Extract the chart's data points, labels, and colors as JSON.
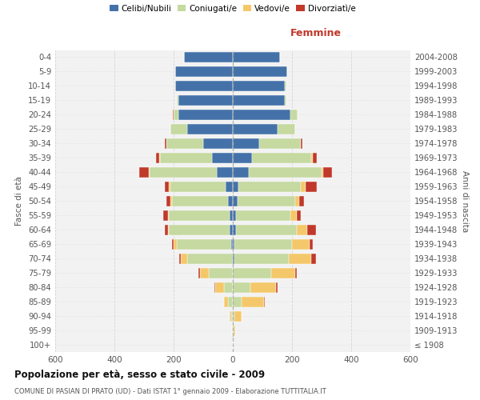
{
  "age_groups": [
    "100+",
    "95-99",
    "90-94",
    "85-89",
    "80-84",
    "75-79",
    "70-74",
    "65-69",
    "60-64",
    "55-59",
    "50-54",
    "45-49",
    "40-44",
    "35-39",
    "30-34",
    "25-29",
    "20-24",
    "15-19",
    "10-14",
    "5-9",
    "0-4"
  ],
  "birth_years": [
    "≤ 1908",
    "1909-1913",
    "1914-1918",
    "1919-1923",
    "1924-1928",
    "1929-1933",
    "1934-1938",
    "1939-1943",
    "1944-1948",
    "1949-1953",
    "1954-1958",
    "1959-1963",
    "1964-1968",
    "1969-1973",
    "1974-1978",
    "1979-1983",
    "1984-1988",
    "1989-1993",
    "1994-1998",
    "1999-2003",
    "2004-2008"
  ],
  "male": {
    "celibi": [
      0,
      0,
      0,
      0,
      0,
      0,
      0,
      5,
      10,
      10,
      15,
      25,
      55,
      70,
      100,
      155,
      185,
      185,
      195,
      195,
      165
    ],
    "coniugati": [
      0,
      2,
      5,
      15,
      30,
      80,
      155,
      185,
      205,
      205,
      190,
      185,
      225,
      175,
      125,
      55,
      15,
      5,
      0,
      0,
      0
    ],
    "vedovi": [
      0,
      2,
      5,
      15,
      30,
      30,
      20,
      10,
      5,
      5,
      5,
      5,
      5,
      5,
      0,
      0,
      0,
      0,
      0,
      0,
      0
    ],
    "divorziati": [
      0,
      0,
      0,
      0,
      2,
      5,
      5,
      5,
      10,
      15,
      15,
      15,
      30,
      10,
      5,
      2,
      2,
      0,
      0,
      0,
      0
    ]
  },
  "female": {
    "nubili": [
      0,
      0,
      0,
      0,
      0,
      0,
      5,
      5,
      10,
      10,
      15,
      20,
      55,
      65,
      90,
      150,
      195,
      175,
      175,
      185,
      160
    ],
    "coniugate": [
      0,
      2,
      5,
      30,
      60,
      130,
      185,
      195,
      205,
      185,
      195,
      210,
      245,
      200,
      140,
      60,
      25,
      5,
      5,
      0,
      0
    ],
    "vedove": [
      0,
      5,
      25,
      75,
      85,
      80,
      75,
      60,
      35,
      20,
      15,
      15,
      5,
      5,
      0,
      0,
      0,
      0,
      0,
      0,
      0
    ],
    "divorziate": [
      0,
      0,
      0,
      2,
      5,
      5,
      15,
      10,
      30,
      15,
      15,
      40,
      30,
      15,
      5,
      2,
      0,
      0,
      0,
      0,
      0
    ]
  },
  "colors": {
    "celibi": "#4472a8",
    "coniugati": "#c5d9a0",
    "vedovi": "#f4c86a",
    "divorziati": "#c0392b"
  },
  "xlim": 600,
  "title": "Popolazione per età, sesso e stato civile - 2009",
  "subtitle": "COMUNE DI PASIAN DI PRATO (UD) - Dati ISTAT 1° gennaio 2009 - Elaborazione TUTTITALIA.IT",
  "ylabel_left": "Fasce di età",
  "ylabel_right": "Anni di nascita",
  "xlabel_right": "Femmine",
  "legend_labels": [
    "Celibi/Nubili",
    "Coniugati/e",
    "Vedovi/e",
    "Divorziatì/e"
  ]
}
